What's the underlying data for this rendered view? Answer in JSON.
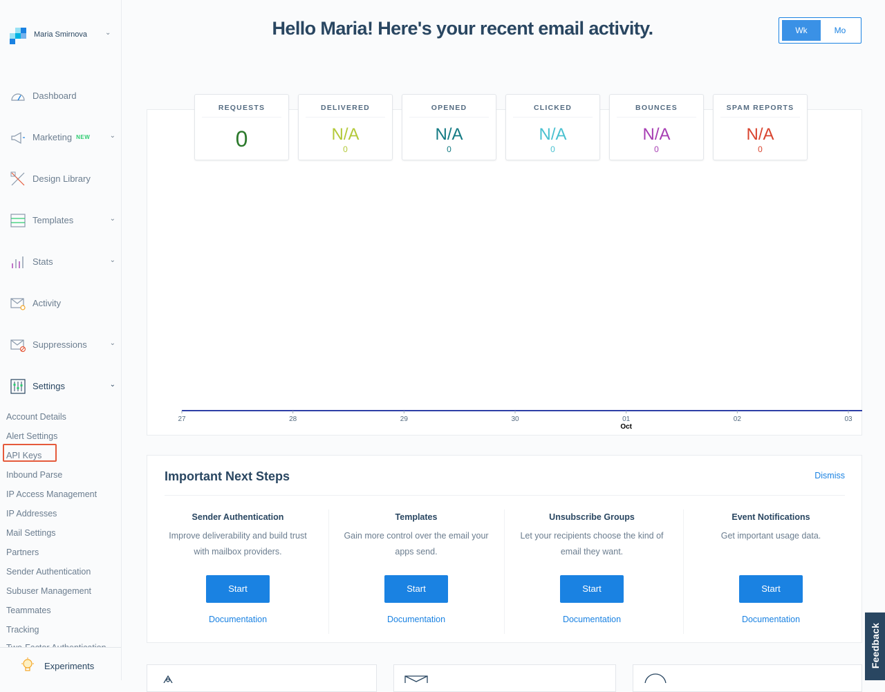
{
  "user": {
    "name": "Maria Smirnova"
  },
  "nav": {
    "items": [
      {
        "id": "dashboard",
        "label": "Dashboard"
      },
      {
        "id": "marketing",
        "label": "Marketing",
        "badge": "NEW"
      },
      {
        "id": "design-library",
        "label": "Design Library"
      },
      {
        "id": "templates",
        "label": "Templates"
      },
      {
        "id": "stats",
        "label": "Stats"
      },
      {
        "id": "activity",
        "label": "Activity"
      },
      {
        "id": "suppressions",
        "label": "Suppressions"
      },
      {
        "id": "settings",
        "label": "Settings"
      }
    ],
    "settings_sub": [
      "Account Details",
      "Alert Settings",
      "API Keys",
      "Inbound Parse",
      "IP Access Management",
      "IP Addresses",
      "Mail Settings",
      "Partners",
      "Sender Authentication",
      "Subuser Management",
      "Teammates",
      "Tracking",
      "Two-Factor Authentication"
    ],
    "experiments": "Experiments"
  },
  "header": {
    "title": "Hello Maria! Here's your recent email activity.",
    "toggle": {
      "week": "Wk",
      "month": "Mo",
      "selected": "Wk"
    }
  },
  "stats": [
    {
      "label": "REQUESTS",
      "value": "0",
      "color": "#2d7a2d"
    },
    {
      "label": "DELIVERED",
      "value": "N/A",
      "count": "0",
      "color": "#b3c939"
    },
    {
      "label": "OPENED",
      "value": "N/A",
      "count": "0",
      "color": "#137a83"
    },
    {
      "label": "CLICKED",
      "value": "N/A",
      "count": "0",
      "color": "#4ac1d0"
    },
    {
      "label": "BOUNCES",
      "value": "N/A",
      "count": "0",
      "color": "#a73eb3"
    },
    {
      "label": "SPAM REPORTS",
      "value": "N/A",
      "count": "0",
      "color": "#d9442f"
    }
  ],
  "chart_data": {
    "type": "line",
    "x": [
      "27",
      "28",
      "29",
      "30",
      "01",
      "02",
      "03"
    ],
    "month_label": "Oct",
    "series": [
      {
        "values": [
          0,
          0,
          0,
          0,
          0,
          0,
          0
        ],
        "color": "#2d3ea6"
      }
    ]
  },
  "next_steps": {
    "title": "Important Next Steps",
    "dismiss": "Dismiss",
    "items": [
      {
        "title": "Sender Authentication",
        "desc": "Improve deliverability and build trust with mailbox providers.",
        "button": "Start",
        "link": "Documentation"
      },
      {
        "title": "Templates",
        "desc": "Gain more control over the email your apps send.",
        "button": "Start",
        "link": "Documentation"
      },
      {
        "title": "Unsubscribe Groups",
        "desc": "Let your recipients choose the kind of email they want.",
        "button": "Start",
        "link": "Documentation"
      },
      {
        "title": "Event Notifications",
        "desc": "Get important usage data.",
        "button": "Start",
        "link": "Documentation"
      }
    ]
  },
  "feedback": "Feedback"
}
